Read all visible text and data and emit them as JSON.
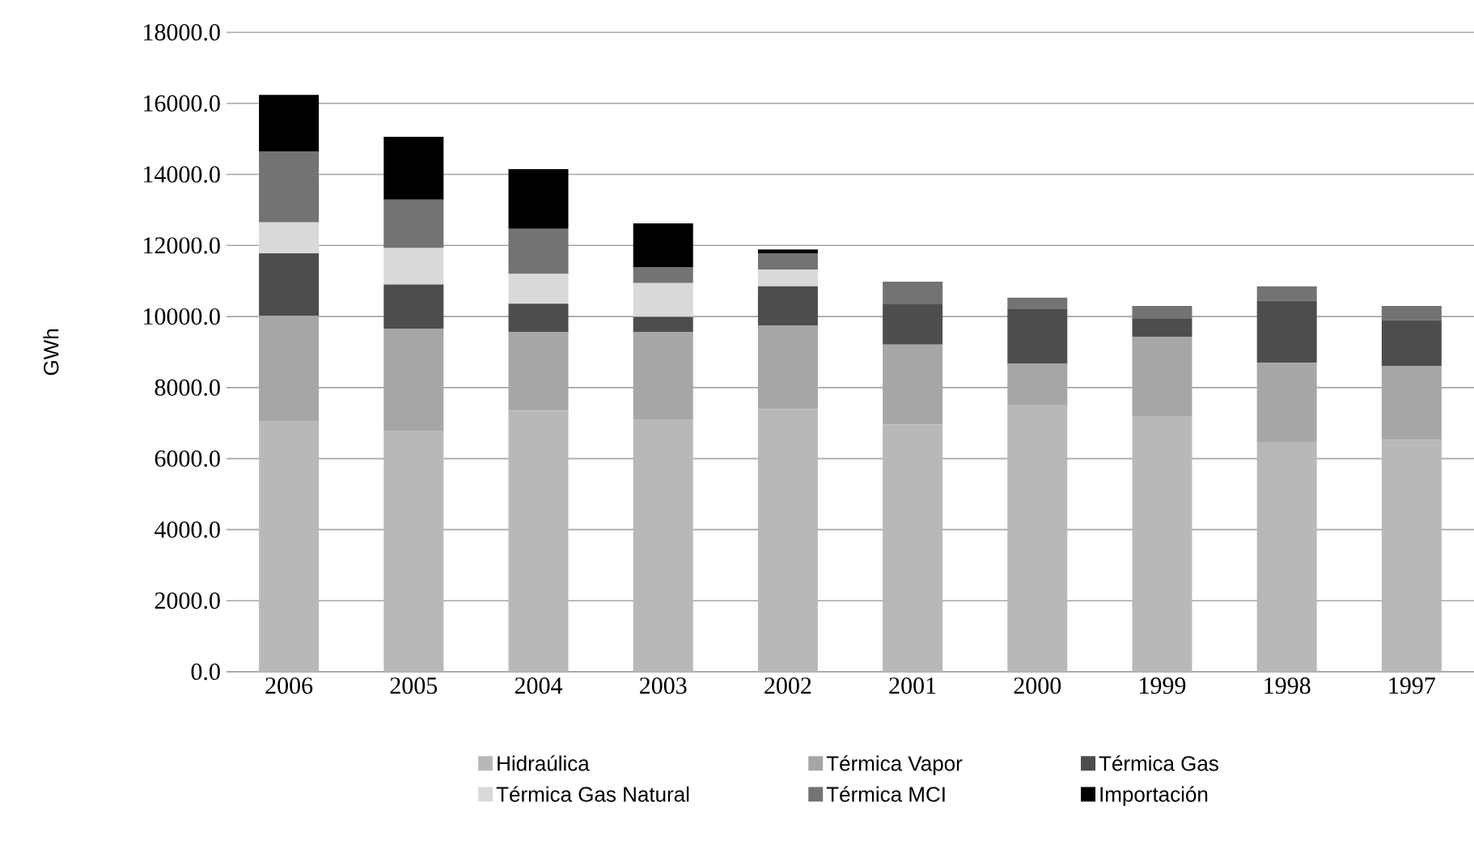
{
  "chart_data": {
    "type": "bar",
    "stacked": true,
    "ylabel": "GWh",
    "categories": [
      "2006",
      "2005",
      "2004",
      "2003",
      "2002",
      "2001",
      "2000",
      "1999",
      "1998",
      "1997"
    ],
    "series": [
      {
        "name": "Hidraúlica",
        "color": "#b8b8b8",
        "values": [
          7060,
          6790,
          7350,
          7110,
          7400,
          6960,
          7520,
          7200,
          6470,
          6530
        ]
      },
      {
        "name": "Térmica Vapor",
        "color": "#a6a6a6",
        "values": [
          2960,
          2870,
          2220,
          2460,
          2350,
          2250,
          1150,
          2230,
          2230,
          2080
        ]
      },
      {
        "name": "Térmica Gas",
        "color": "#4d4d4d",
        "values": [
          1760,
          1240,
          790,
          420,
          1100,
          1150,
          1540,
          520,
          1740,
          1290
        ]
      },
      {
        "name": "Térmica Gas Natural",
        "color": "#d9d9d9",
        "values": [
          870,
          1030,
          840,
          950,
          470,
          0,
          0,
          0,
          0,
          0
        ]
      },
      {
        "name": "Térmica MCI",
        "color": "#737373",
        "values": [
          2000,
          1360,
          1270,
          450,
          450,
          620,
          320,
          350,
          410,
          400
        ]
      },
      {
        "name": "Importación",
        "color": "#000000",
        "values": [
          1590,
          1770,
          1680,
          1230,
          120,
          0,
          0,
          0,
          0,
          0
        ]
      }
    ],
    "ylim": [
      0,
      18000
    ],
    "yticks": [
      {
        "value": 0,
        "label": "0.0"
      },
      {
        "value": 2000,
        "label": "2000.0"
      },
      {
        "value": 4000,
        "label": "4000.0"
      },
      {
        "value": 6000,
        "label": "6000.0"
      },
      {
        "value": 8000,
        "label": "8000.0"
      },
      {
        "value": 10000,
        "label": "10000.0"
      },
      {
        "value": 12000,
        "label": "12000.0"
      },
      {
        "value": 14000,
        "label": "14000.0"
      },
      {
        "value": 16000,
        "label": "16000.0"
      },
      {
        "value": 18000,
        "label": "18000.0"
      }
    ],
    "grid": "y",
    "legend": "bottom"
  }
}
